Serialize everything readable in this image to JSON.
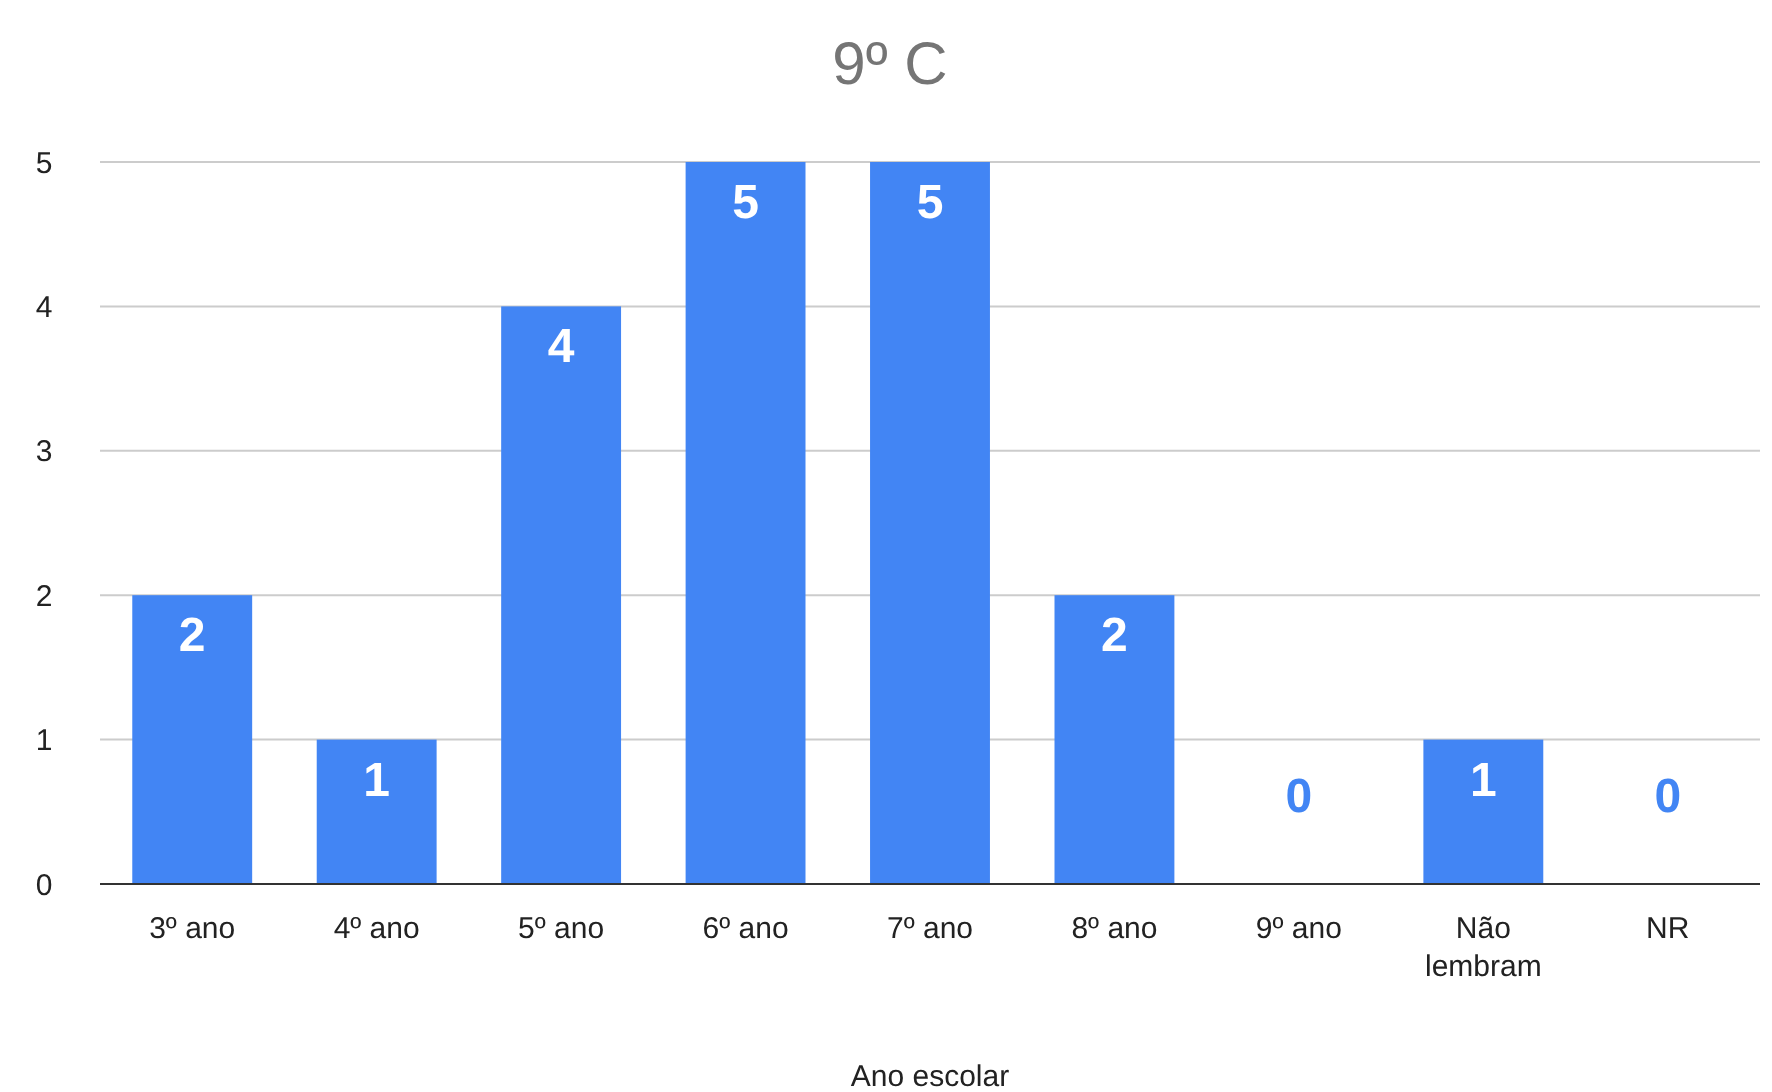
{
  "chart_data": {
    "type": "bar",
    "title": "9º C",
    "xlabel": "Ano escolar",
    "categories": [
      "3º ano",
      "4º ano",
      "5º ano",
      "6º ano",
      "7º ano",
      "8º ano",
      "9º ano",
      "Não lembram",
      "NR"
    ],
    "values": [
      2,
      1,
      4,
      5,
      5,
      2,
      0,
      1,
      0
    ],
    "color": "#4285f4",
    "ylim": [
      0,
      5
    ],
    "yticks": [
      0,
      1,
      2,
      3,
      4,
      5
    ],
    "grid": "y",
    "data_labels": true
  }
}
